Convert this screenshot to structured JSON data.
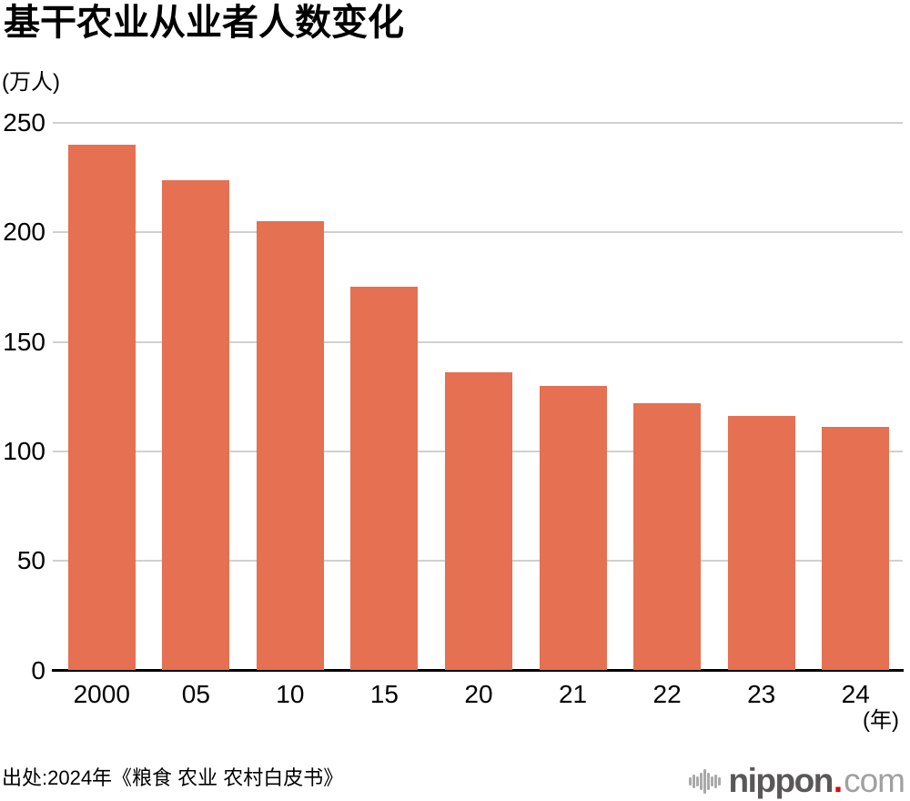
{
  "page": {
    "title": "基干农业从业者人数变化",
    "y_unit_label": "(万人)",
    "x_unit_label": "(年)",
    "source": "出处:2024年《粮食 农业 农村白皮书》",
    "logo": {
      "brand": "nippon",
      "dot": ".",
      "tld": "com"
    }
  },
  "chart_data": {
    "type": "bar",
    "title": "基干农业从业者人数变化",
    "categories": [
      "2000",
      "05",
      "10",
      "15",
      "20",
      "21",
      "22",
      "23",
      "24"
    ],
    "values": [
      240,
      224,
      205,
      175,
      136,
      130,
      122,
      116,
      111
    ],
    "xlabel": "(年)",
    "ylabel": "(万人)",
    "ylim": [
      0,
      250
    ],
    "yticks": [
      0,
      50,
      100,
      150,
      200,
      250
    ],
    "grid": true,
    "legend": "none",
    "bar_color": "#E57052",
    "gridline_color": "#D0D0D0",
    "axis_color": "#000000"
  }
}
